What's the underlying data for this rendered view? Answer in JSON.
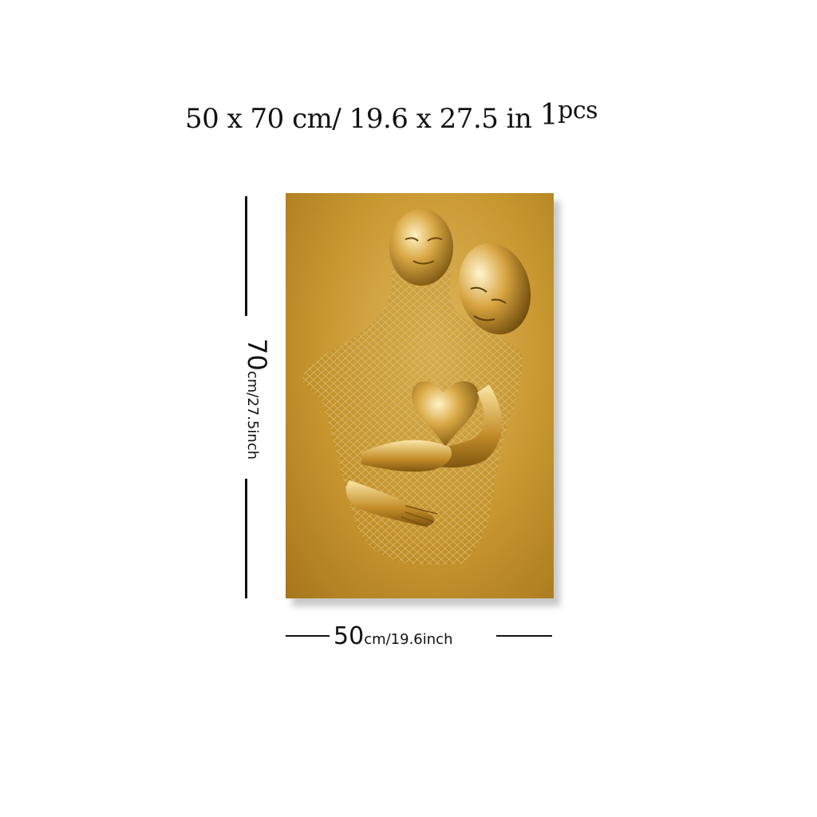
{
  "headline": {
    "size_cm": "50 x 70 cm/",
    "size_in": " 19.6 x 27.5 in ",
    "count": "1",
    "unit": "pcs"
  },
  "height_dim": {
    "value": "70",
    "unit": "cm/27.5inch"
  },
  "width_dim": {
    "value": "50",
    "unit": "cm/19.6inch"
  },
  "colors": {
    "canvas_gold": "#c8962f",
    "highlight": "#f3d68a"
  }
}
